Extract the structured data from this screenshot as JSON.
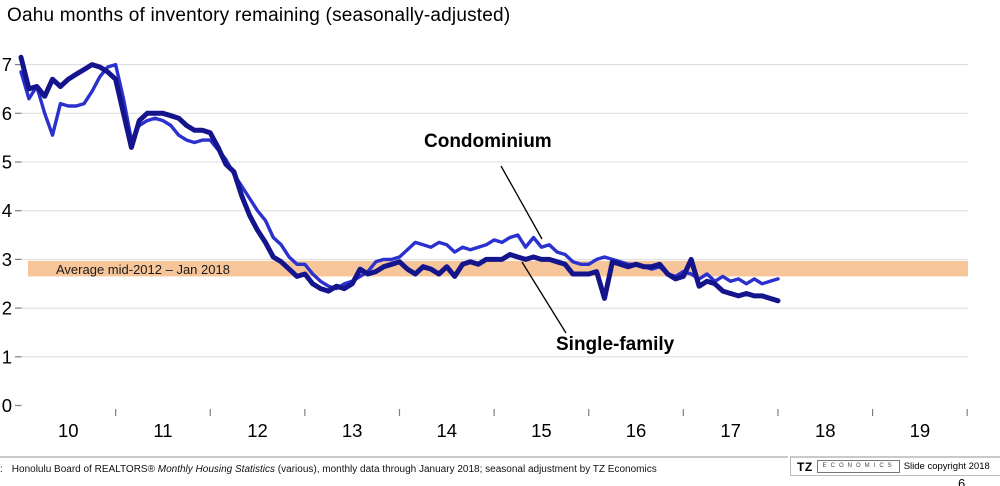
{
  "title": "Oahu months of inventory remaining (seasonally-adjusted)",
  "annotations": {
    "condominium": "Condominium",
    "single_family": "Single-family",
    "band": "Average mid-2012 – Jan 2018"
  },
  "footer": {
    "source_prefix": ":",
    "source_before_italic": "Honolulu Board of REALTORS® ",
    "source_italic": "Monthly Housing Statistics",
    "source_after_italic": " (various), monthly data through January 2018; seasonal adjustment by TZ Economics",
    "tz": "TZ",
    "tz_econ": "ECONOMICS",
    "copyright": "Slide copyright 2018",
    "page": "6"
  },
  "colors": {
    "condominium_line": "#2A31CE",
    "single_family_line": "#14148C",
    "band_fill": "#F6C69A",
    "gridline": "#DCDCDC",
    "tick": "#808080",
    "leader_line": "#000000"
  },
  "chart_data": {
    "type": "line",
    "title": "Oahu months of inventory remaining (seasonally-adjusted)",
    "x_start": "2010-01",
    "x_end": "2018-01",
    "x_ticklabels": [
      "10",
      "11",
      "12",
      "13",
      "14",
      "15",
      "16",
      "17",
      "18",
      "19"
    ],
    "y_ticks": [
      0,
      1,
      2,
      3,
      4,
      5,
      6,
      7
    ],
    "ylim": [
      0,
      7
    ],
    "grid": true,
    "legend_position": "inline-annotations",
    "band": {
      "label": "Average mid-2012 – Jan 2018",
      "from": 2.65,
      "to": 2.97
    },
    "series": [
      {
        "name": "Condominium",
        "color": "#2A31CE",
        "values": [
          6.85,
          6.3,
          6.55,
          6.0,
          5.55,
          6.2,
          6.15,
          6.15,
          6.2,
          6.45,
          6.75,
          6.95,
          7.0,
          6.3,
          5.45,
          5.75,
          5.85,
          5.9,
          5.85,
          5.75,
          5.55,
          5.45,
          5.4,
          5.45,
          5.45,
          5.25,
          5.05,
          4.75,
          4.5,
          4.25,
          4.0,
          3.8,
          3.45,
          3.3,
          3.05,
          2.9,
          2.9,
          2.7,
          2.55,
          2.45,
          2.4,
          2.5,
          2.55,
          2.65,
          2.75,
          2.95,
          3.0,
          3.0,
          3.05,
          3.2,
          3.35,
          3.3,
          3.25,
          3.35,
          3.3,
          3.15,
          3.25,
          3.2,
          3.25,
          3.3,
          3.4,
          3.35,
          3.45,
          3.5,
          3.25,
          3.45,
          3.25,
          3.3,
          3.15,
          3.1,
          2.95,
          2.9,
          2.9,
          3.0,
          3.05,
          3.0,
          2.95,
          2.9,
          2.9,
          2.85,
          2.8,
          2.85,
          2.7,
          2.65,
          2.75,
          2.7,
          2.6,
          2.7,
          2.55,
          2.65,
          2.55,
          2.6,
          2.5,
          2.6,
          2.5,
          2.55,
          2.6
        ]
      },
      {
        "name": "Single-family",
        "color": "#14148C",
        "values": [
          7.15,
          6.5,
          6.55,
          6.35,
          6.7,
          6.55,
          6.7,
          6.8,
          6.9,
          7.0,
          6.95,
          6.85,
          6.7,
          6.0,
          5.3,
          5.85,
          6.0,
          6.0,
          6.0,
          5.95,
          5.9,
          5.75,
          5.65,
          5.65,
          5.6,
          5.3,
          4.95,
          4.8,
          4.3,
          3.9,
          3.6,
          3.35,
          3.05,
          2.95,
          2.8,
          2.65,
          2.7,
          2.5,
          2.4,
          2.35,
          2.45,
          2.4,
          2.5,
          2.8,
          2.7,
          2.75,
          2.85,
          2.9,
          2.95,
          2.8,
          2.7,
          2.85,
          2.8,
          2.7,
          2.85,
          2.65,
          2.9,
          2.95,
          2.9,
          3.0,
          3.0,
          3.0,
          3.1,
          3.05,
          3.0,
          3.05,
          3.0,
          3.0,
          2.95,
          2.9,
          2.7,
          2.7,
          2.7,
          2.75,
          2.2,
          2.95,
          2.9,
          2.85,
          2.9,
          2.85,
          2.85,
          2.9,
          2.7,
          2.6,
          2.65,
          3.0,
          2.45,
          2.55,
          2.5,
          2.35,
          2.3,
          2.25,
          2.3,
          2.25,
          2.25,
          2.2,
          2.15
        ]
      }
    ]
  }
}
